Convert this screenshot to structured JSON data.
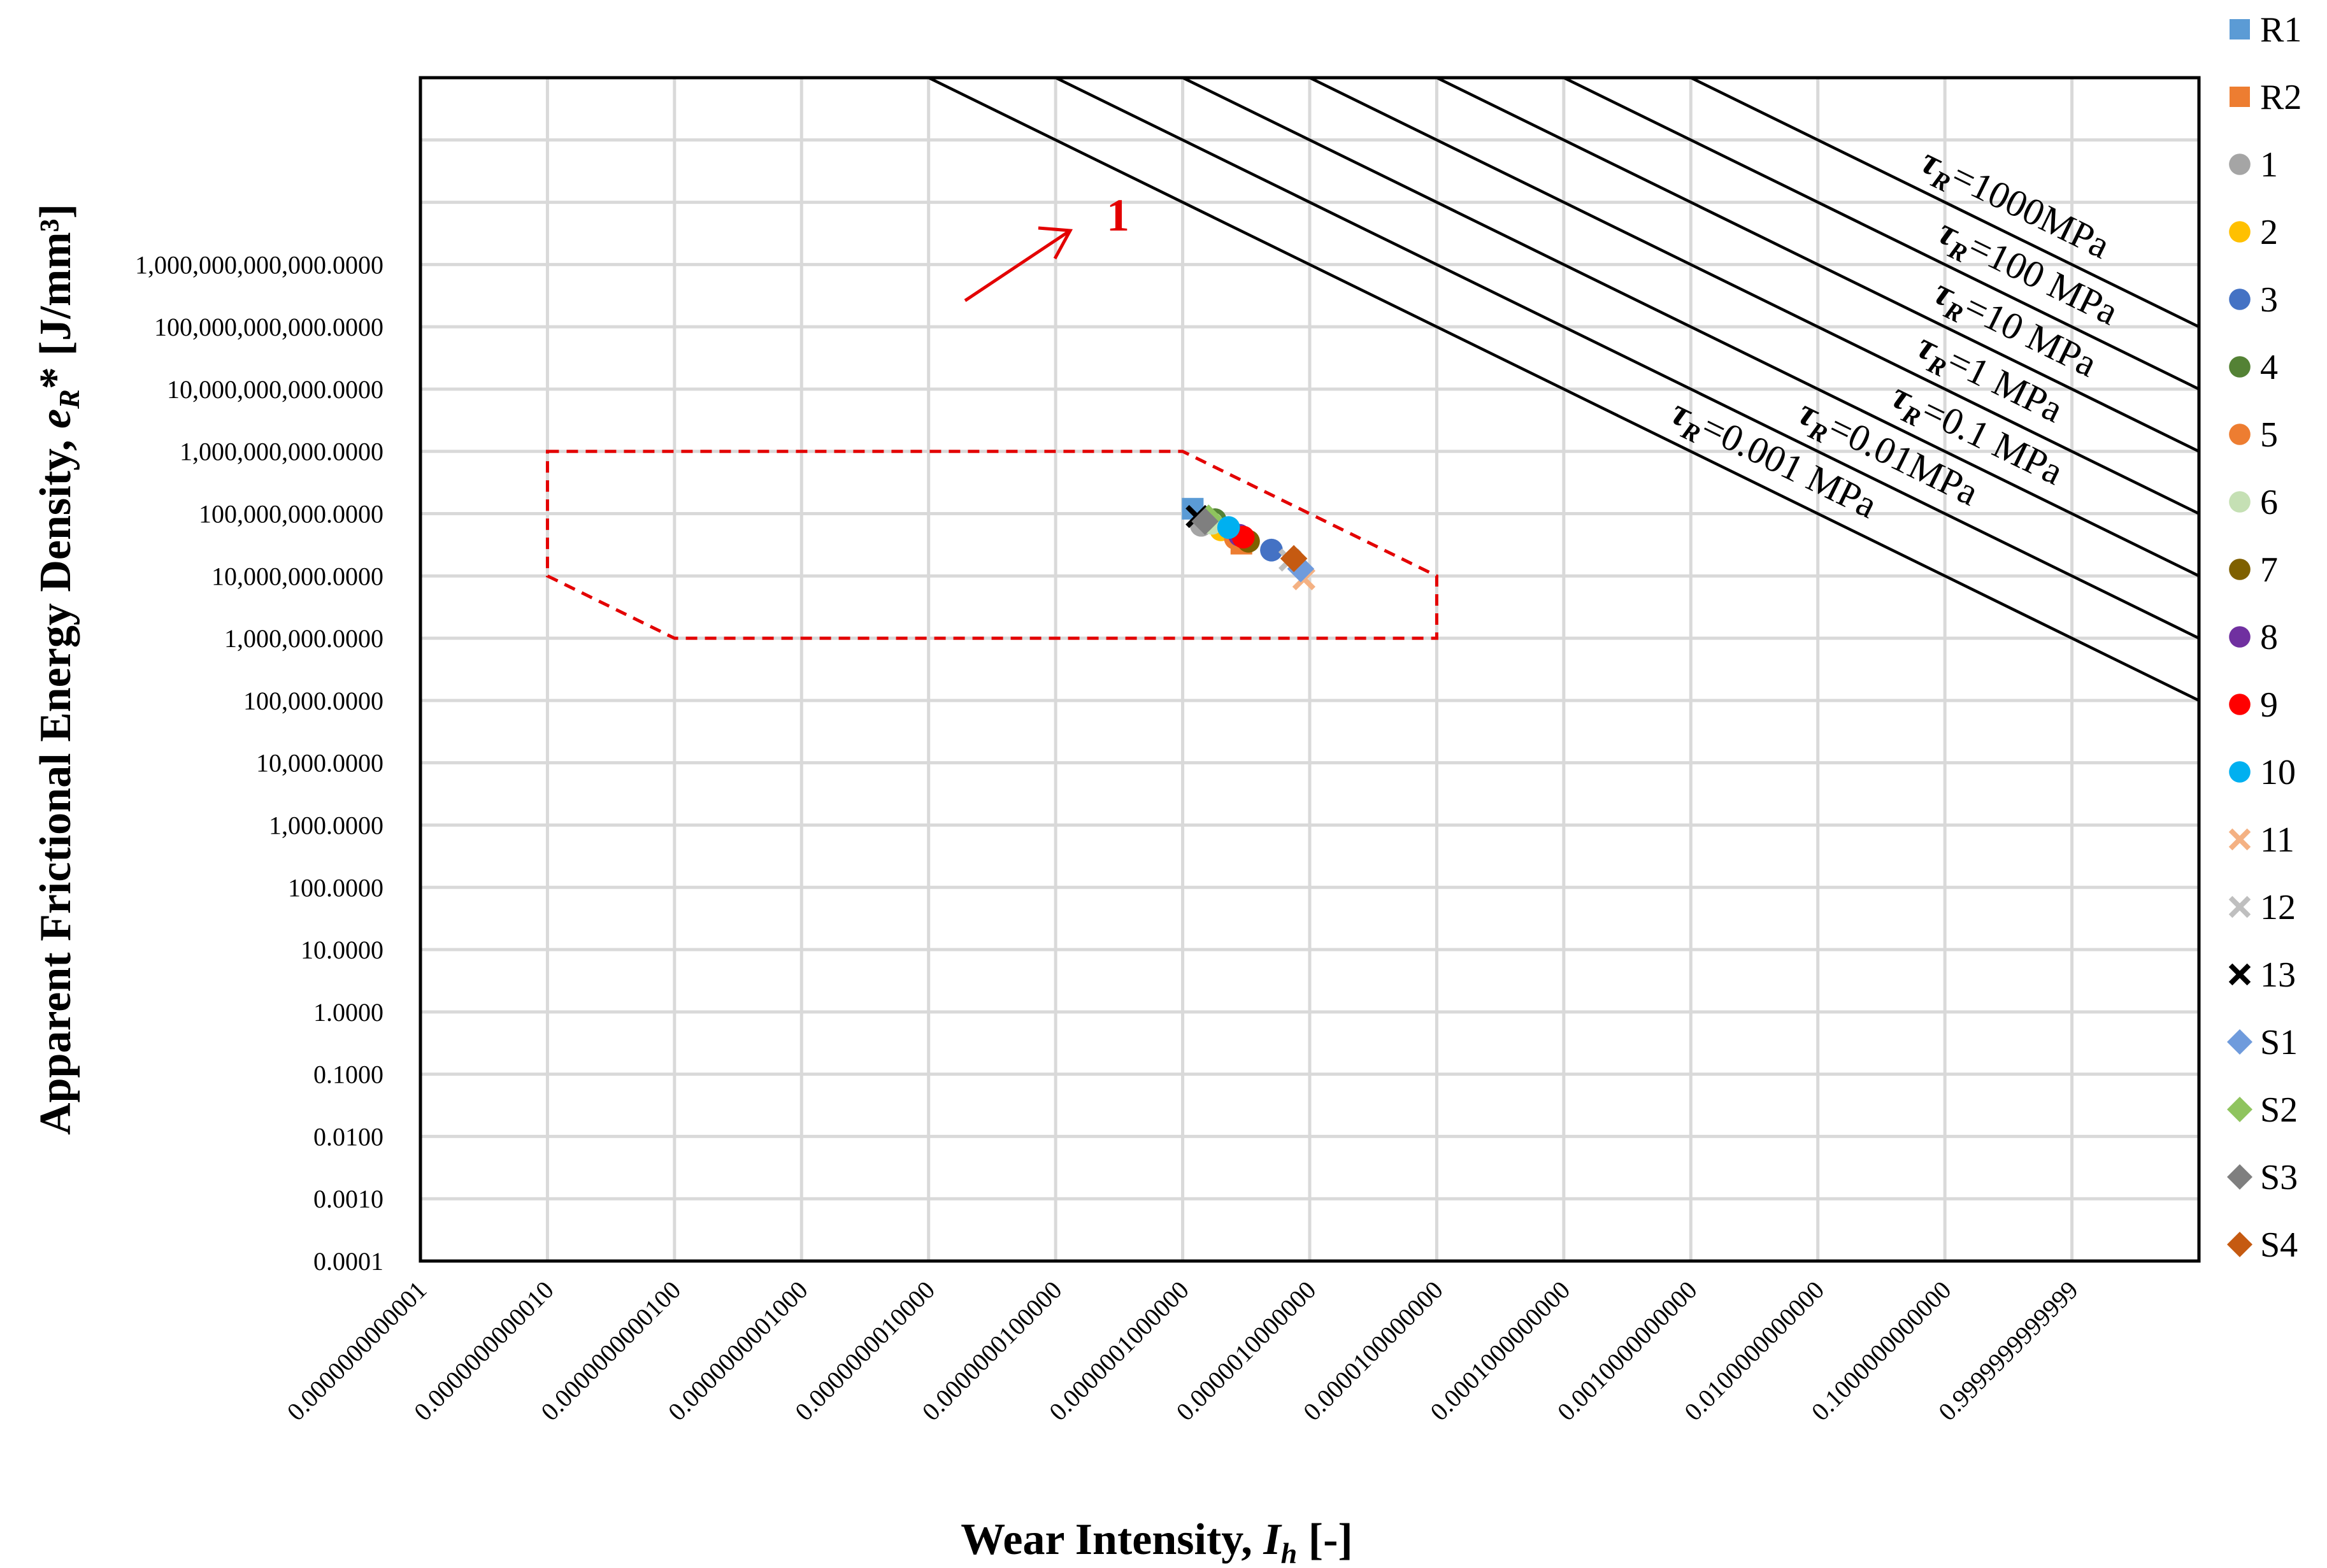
{
  "chart_data": {
    "type": "scatter",
    "xlabel": "Wear Intensity, I_h [-]",
    "xlabel_parts": {
      "main": "Wear Intensity, ",
      "sym": "I",
      "sub": "h",
      "rest": " [-]"
    },
    "ylabel": "Apparent Frictional Energy Density, e_R* [J/mm³]",
    "ylabel_parts": {
      "main": "Apparent Frictional Energy Density, ",
      "sym": "e",
      "sub": "R",
      "rest": "* [J/mm³]"
    },
    "x_scale": "log",
    "y_scale": "log",
    "xlim": [
      1e-14,
      1
    ],
    "ylim": [
      0.0001,
      1000000000000000.0
    ],
    "grid": true,
    "legend_position": "right",
    "x_tick_labels": [
      "0.0000000000001",
      "0.0000000000010",
      "0.0000000000100",
      "0.0000000001000",
      "0.0000000010000",
      "0.0000000100000",
      "0.0000001000000",
      "0.0000010000000",
      "0.0000100000000",
      "0.0001000000000",
      "0.0010000000000",
      "0.0100000000000",
      "0.1000000000000",
      "0.9999999999999"
    ],
    "y_tick_labels": [
      "0.0001",
      "0.0010",
      "0.0100",
      "0.1000",
      "1.0000",
      "10.0000",
      "100.0000",
      "1,000.0000",
      "10,000.0000",
      "100,000.0000",
      "1,000,000.0000",
      "10,000,000.0000",
      "100,000,000.0000",
      "1,000,000,000.0000",
      "10,000,000,000.0000",
      "100,000,000,000.0000",
      "1,000,000,000,000.0000"
    ],
    "reference_lines": [
      {
        "label": "=1000MPa",
        "tau_mpa": 1000
      },
      {
        "label": "=100 MPa",
        "tau_mpa": 100
      },
      {
        "label": "=10 MPa",
        "tau_mpa": 10
      },
      {
        "label": "=1 MPa",
        "tau_mpa": 1
      },
      {
        "label": "=0.1 MPa",
        "tau_mpa": 0.1
      },
      {
        "label": "=0.01MPa",
        "tau_mpa": 0.01
      },
      {
        "label": "=0.001 MPa",
        "tau_mpa": 0.001
      }
    ],
    "tau_symbol": "τ",
    "tau_sub": "R",
    "highlight_region": {
      "label": "1",
      "color": "#e30000",
      "vertices": [
        [
          1e-13,
          1000000000.0
        ],
        [
          1e-08,
          1000000000.0
        ],
        [
          1e-06,
          10000000.0
        ],
        [
          1e-06,
          1000000.0
        ],
        [
          1e-12,
          1000000.0
        ],
        [
          1e-13,
          10000000.0
        ]
      ]
    },
    "series": [
      {
        "name": "R1",
        "marker": "square",
        "color": "#5b9bd5",
        "x": [
          1.2e-08
        ],
        "y": [
          120000000.0
        ]
      },
      {
        "name": "R2",
        "marker": "square",
        "color": "#ed7d31",
        "x": [
          2.9e-08
        ],
        "y": [
          33000000.0
        ]
      },
      {
        "name": "1",
        "marker": "circle",
        "color": "#a5a5a5",
        "x": [
          1.4e-08
        ],
        "y": [
          65000000.0
        ]
      },
      {
        "name": "2",
        "marker": "circle",
        "color": "#ffc000",
        "x": [
          2e-08
        ],
        "y": [
          55000000.0
        ]
      },
      {
        "name": "3",
        "marker": "circle",
        "color": "#4472c4",
        "x": [
          5e-08
        ],
        "y": [
          26000000.0
        ]
      },
      {
        "name": "4",
        "marker": "circle",
        "color": "#548235",
        "x": [
          1.8e-08
        ],
        "y": [
          80000000.0
        ]
      },
      {
        "name": "5",
        "marker": "circle",
        "color": "#ed7d31",
        "x": [
          2.6e-08
        ],
        "y": [
          40000000.0
        ]
      },
      {
        "name": "6",
        "marker": "circle",
        "color": "#c5e0b4",
        "x": [
          1.7e-08
        ],
        "y": [
          70000000.0
        ]
      },
      {
        "name": "7",
        "marker": "circle",
        "color": "#7f6000",
        "x": [
          3.3e-08
        ],
        "y": [
          36000000.0
        ]
      },
      {
        "name": "8",
        "marker": "circle",
        "color": "#7030a0",
        "x": [
          2.8e-08
        ],
        "y": [
          45000000.0
        ]
      },
      {
        "name": "9",
        "marker": "circle",
        "color": "#ff0000",
        "x": [
          3e-08
        ],
        "y": [
          42000000.0
        ]
      },
      {
        "name": "10",
        "marker": "circle",
        "color": "#00b0f0",
        "x": [
          2.3e-08
        ],
        "y": [
          60000000.0
        ]
      },
      {
        "name": "11",
        "marker": "x",
        "color": "#f4b183",
        "x": [
          9e-08
        ],
        "y": [
          9000000.0
        ]
      },
      {
        "name": "12",
        "marker": "x",
        "color": "#bfbfbf",
        "x": [
          7e-08
        ],
        "y": [
          18000000.0
        ]
      },
      {
        "name": "13",
        "marker": "x",
        "color": "#000000",
        "x": [
          1.3e-08
        ],
        "y": [
          90000000.0
        ]
      },
      {
        "name": "S1",
        "marker": "diamond",
        "color": "#6f9bdc",
        "x": [
          8.5e-08
        ],
        "y": [
          13000000.0
        ]
      },
      {
        "name": "S2",
        "marker": "diamond",
        "color": "#8fc45e",
        "x": [
          1.6e-08
        ],
        "y": [
          85000000.0
        ]
      },
      {
        "name": "S3",
        "marker": "diamond",
        "color": "#7f7f7f",
        "x": [
          1.5e-08
        ],
        "y": [
          75000000.0
        ]
      },
      {
        "name": "S4",
        "marker": "diamond",
        "color": "#c55a11",
        "x": [
          7.5e-08
        ],
        "y": [
          19000000.0
        ]
      }
    ]
  }
}
